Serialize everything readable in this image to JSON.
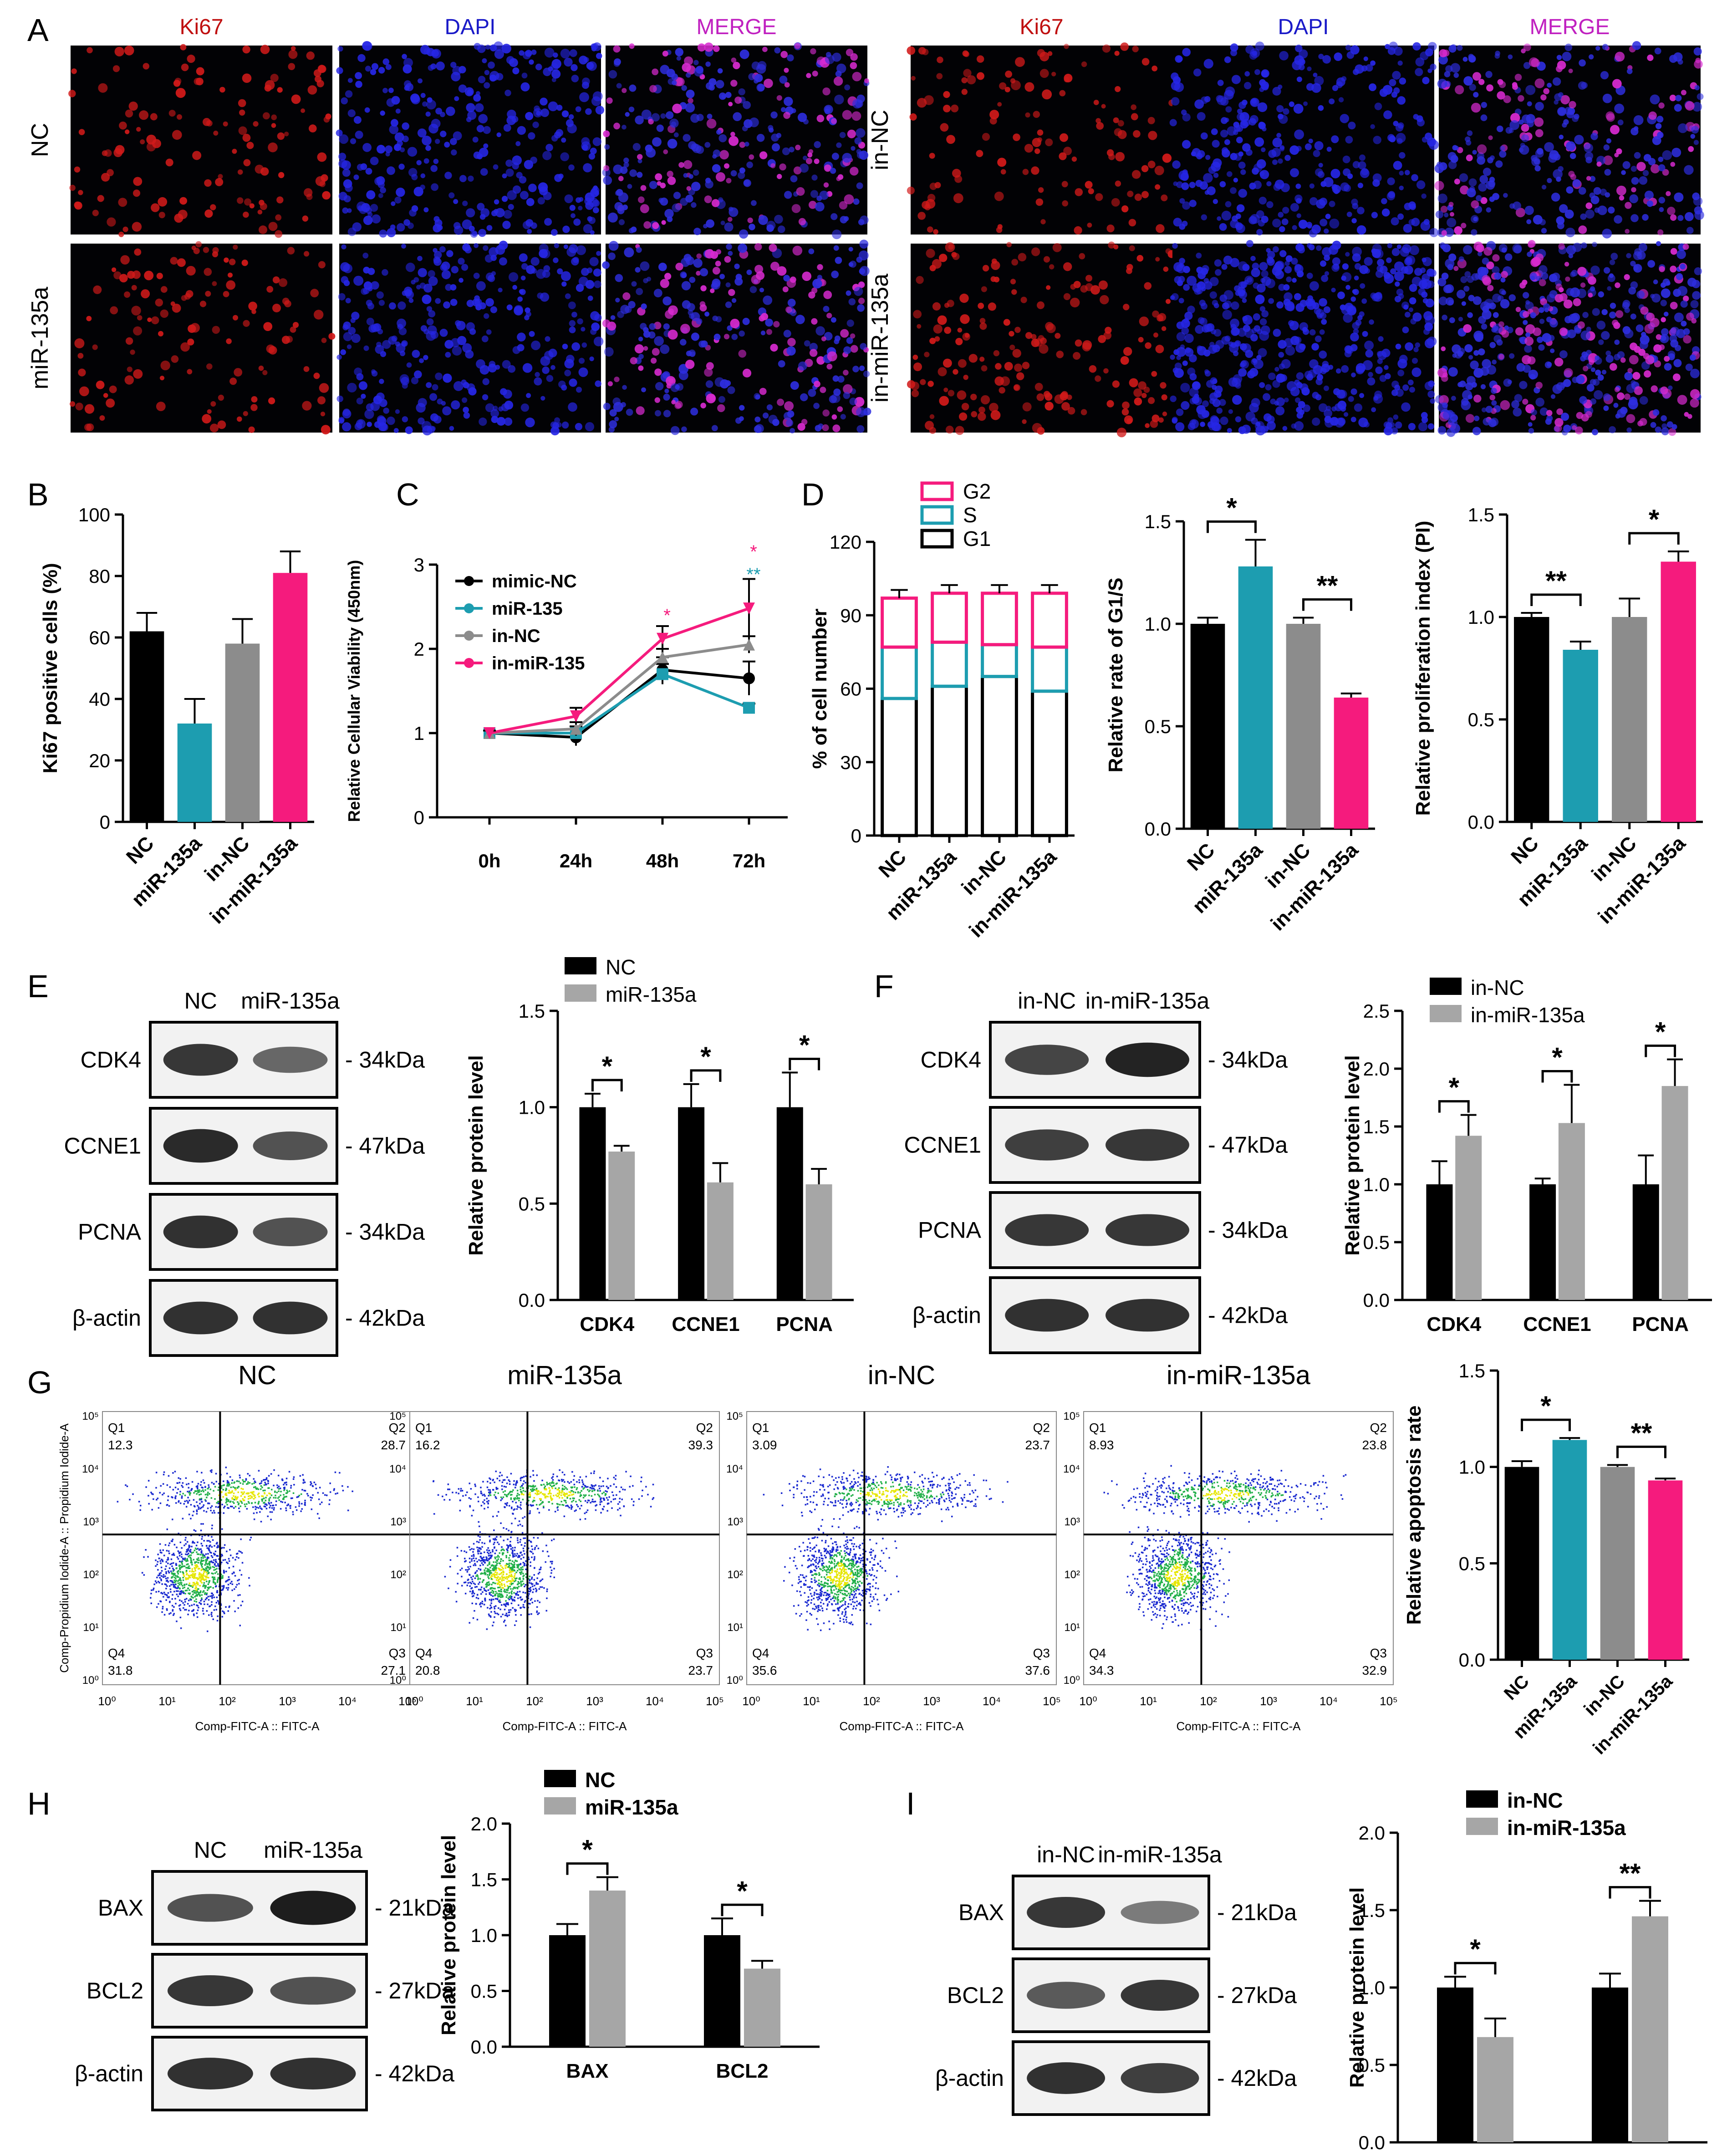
{
  "panel_letters": [
    "A",
    "B",
    "C",
    "D",
    "E",
    "F",
    "G",
    "H",
    "I"
  ],
  "panelA": {
    "channels": [
      "Ki67",
      "DAPI",
      "MERGE"
    ],
    "channel_colors": [
      "#c01010",
      "#1a1ac8",
      "#c020c0"
    ],
    "left_rows": [
      "NC",
      "miR-135a"
    ],
    "right_rows": [
      "in-NC",
      "in-miR-135a"
    ]
  },
  "chart_data": [
    {
      "panel": "B",
      "type": "bar",
      "categories": [
        "NC",
        "miR-135a",
        "in-NC",
        "in-miR-135a"
      ],
      "values": [
        62,
        32,
        58,
        81
      ],
      "errors": [
        6,
        8,
        8,
        7
      ],
      "colors": [
        "#000000",
        "#1d9db0",
        "#8c8c8c",
        "#f51b7d"
      ],
      "ylabel": "Ki67 positive cells (%)",
      "ylim": [
        0,
        100
      ],
      "yticks": [
        "0",
        "20",
        "40",
        "60",
        "80",
        "100"
      ]
    },
    {
      "panel": "C",
      "type": "line",
      "x": [
        "0h",
        "24h",
        "48h",
        "72h"
      ],
      "ylabel": "Relative Cellular Viability (450nm)",
      "ylim": [
        0,
        3
      ],
      "yticks": [
        "0",
        "1",
        "2",
        "3"
      ],
      "series": [
        {
          "name": "mimic-NC",
          "values": [
            1.0,
            0.95,
            1.75,
            1.65
          ],
          "errors": [
            0.03,
            0.1,
            0.15,
            0.2
          ],
          "color": "#000000",
          "marker": "circle"
        },
        {
          "name": "miR-135",
          "values": [
            1.0,
            1.0,
            1.7,
            1.3
          ],
          "errors": [
            0.03,
            0.08,
            0.12,
            0.05
          ],
          "color": "#1d9db0",
          "marker": "square"
        },
        {
          "name": "in-NC",
          "values": [
            1.0,
            1.05,
            1.9,
            2.05
          ],
          "errors": [
            0.03,
            0.08,
            0.1,
            0.1
          ],
          "color": "#8c8c8c",
          "marker": "triangle"
        },
        {
          "name": "in-miR-135",
          "values": [
            1.0,
            1.2,
            2.12,
            2.48
          ],
          "errors": [
            0.03,
            0.1,
            0.15,
            0.35
          ],
          "color": "#f51b7d",
          "marker": "triangle-down"
        }
      ],
      "annotations": [
        {
          "x": "48h",
          "text": "*",
          "color": "#f51b7d"
        },
        {
          "x": "72h",
          "text": "*",
          "color": "#f51b7d"
        },
        {
          "x": "72h",
          "text": "**",
          "color": "#1d9db0"
        }
      ]
    },
    {
      "panel": "D1",
      "type": "bar",
      "stacked": true,
      "categories": [
        "NC",
        "miR-135a",
        "in-NC",
        "in-miR-135a"
      ],
      "ylabel": "% of cell number",
      "ylim": [
        0,
        120
      ],
      "yticks": [
        "0",
        "30",
        "60",
        "90",
        "120"
      ],
      "series": [
        {
          "name": "G1",
          "values": [
            56,
            61,
            65,
            59
          ],
          "color": "#000000"
        },
        {
          "name": "S",
          "values": [
            21,
            18,
            13,
            18
          ],
          "color": "#1d9db0"
        },
        {
          "name": "G2",
          "values": [
            20,
            20,
            21,
            22
          ],
          "color": "#f51b7d"
        }
      ],
      "legend_order": [
        "G2",
        "S",
        "G1"
      ]
    },
    {
      "panel": "D2",
      "type": "bar",
      "categories": [
        "NC",
        "miR-135a",
        "in-NC",
        "in-miR-135a"
      ],
      "values": [
        1.0,
        1.28,
        1.0,
        0.64
      ],
      "errors": [
        0.03,
        0.13,
        0.03,
        0.02
      ],
      "colors": [
        "#000000",
        "#1d9db0",
        "#8c8c8c",
        "#f51b7d"
      ],
      "ylabel": "Relative rate of G1/S",
      "ylim": [
        0,
        1.5
      ],
      "yticks": [
        "0.0",
        "0.5",
        "1.0",
        "1.5"
      ],
      "brackets": [
        {
          "from": 0,
          "to": 1,
          "text": "*"
        },
        {
          "from": 2,
          "to": 3,
          "text": "**"
        }
      ]
    },
    {
      "panel": "D3",
      "type": "bar",
      "categories": [
        "NC",
        "miR-135a",
        "in-NC",
        "in-miR-135a"
      ],
      "values": [
        1.0,
        0.84,
        1.0,
        1.27
      ],
      "errors": [
        0.02,
        0.04,
        0.09,
        0.05
      ],
      "colors": [
        "#000000",
        "#1d9db0",
        "#8c8c8c",
        "#f51b7d"
      ],
      "ylabel": "Relative proliferation index (PI)",
      "ylim": [
        0,
        1.5
      ],
      "yticks": [
        "0.0",
        "0.5",
        "1.0",
        "1.5"
      ],
      "brackets": [
        {
          "from": 0,
          "to": 1,
          "text": "**"
        },
        {
          "from": 2,
          "to": 3,
          "text": "*"
        }
      ]
    },
    {
      "panel": "E",
      "type": "bar",
      "categories": [
        "CDK4",
        "CCNE1",
        "PCNA"
      ],
      "series": [
        {
          "name": "NC",
          "values": [
            1.0,
            1.0,
            1.0
          ],
          "errors": [
            0.07,
            0.12,
            0.18
          ],
          "color": "#000000"
        },
        {
          "name": "miR-135a",
          "values": [
            0.77,
            0.61,
            0.6
          ],
          "errors": [
            0.03,
            0.1,
            0.08
          ],
          "color": "#a6a6a6"
        }
      ],
      "ylabel": "Relative protein level",
      "ylim": [
        0,
        1.5
      ],
      "yticks": [
        "0.0",
        "0.5",
        "1.0",
        "1.5"
      ],
      "brackets": [
        "*",
        "*",
        "*"
      ]
    },
    {
      "panel": "F",
      "type": "bar",
      "categories": [
        "CDK4",
        "CCNE1",
        "PCNA"
      ],
      "series": [
        {
          "name": "in-NC",
          "values": [
            1.0,
            1.0,
            1.0
          ],
          "errors": [
            0.2,
            0.05,
            0.25
          ],
          "color": "#000000"
        },
        {
          "name": "in-miR-135a",
          "values": [
            1.42,
            1.53,
            1.85
          ],
          "errors": [
            0.18,
            0.33,
            0.23
          ],
          "color": "#a6a6a6"
        }
      ],
      "ylabel": "Relative protein level",
      "ylim": [
        0,
        2.5
      ],
      "yticks": [
        "0.0",
        "0.5",
        "1.0",
        "1.5",
        "2.0",
        "2.5"
      ],
      "brackets": [
        "*",
        "*",
        "*"
      ]
    },
    {
      "panel": "G-bar",
      "type": "bar",
      "categories": [
        "NC",
        "miR-135a",
        "in-NC",
        "in-miR-135a"
      ],
      "values": [
        1.0,
        1.14,
        1.0,
        0.93
      ],
      "errors": [
        0.03,
        0.01,
        0.01,
        0.01
      ],
      "colors": [
        "#000000",
        "#1d9db0",
        "#8c8c8c",
        "#f51b7d"
      ],
      "ylabel": "Relative apoptosis rate",
      "ylim": [
        0,
        1.5
      ],
      "yticks": [
        "0.0",
        "0.5",
        "1.0",
        "1.5"
      ],
      "brackets": [
        {
          "from": 0,
          "to": 1,
          "text": "*"
        },
        {
          "from": 2,
          "to": 3,
          "text": "**"
        }
      ]
    },
    {
      "panel": "H",
      "type": "bar",
      "categories": [
        "BAX",
        "BCL2"
      ],
      "series": [
        {
          "name": "NC",
          "values": [
            1.0,
            1.0
          ],
          "errors": [
            0.1,
            0.15
          ],
          "color": "#000000"
        },
        {
          "name": "miR-135a",
          "values": [
            1.4,
            0.7
          ],
          "errors": [
            0.12,
            0.07
          ],
          "color": "#a6a6a6"
        }
      ],
      "ylabel": "Relative protein level",
      "ylim": [
        0,
        2.0
      ],
      "yticks": [
        "0.0",
        "0.5",
        "1.0",
        "1.5",
        "2.0"
      ],
      "brackets": [
        "*",
        "*"
      ]
    },
    {
      "panel": "I",
      "type": "bar",
      "categories": [
        "BAX",
        "BCL2"
      ],
      "series": [
        {
          "name": "in-NC",
          "values": [
            1.0,
            1.0
          ],
          "errors": [
            0.07,
            0.09
          ],
          "color": "#000000"
        },
        {
          "name": "in-miR-135a",
          "values": [
            0.68,
            1.46
          ],
          "errors": [
            0.12,
            0.1
          ],
          "color": "#a6a6a6"
        }
      ],
      "ylabel": "Relative protein level",
      "ylim": [
        0,
        2.0
      ],
      "yticks": [
        "0.0",
        "0.5",
        "1.0",
        "1.5",
        "2.0"
      ],
      "brackets": [
        "*",
        "**"
      ]
    }
  ],
  "westernE": {
    "lanes": [
      "NC",
      "miR-135a"
    ],
    "rows": [
      {
        "protein": "CDK4",
        "size": "- 34kDa"
      },
      {
        "protein": "CCNE1",
        "size": "- 47kDa"
      },
      {
        "protein": "PCNA",
        "size": "- 34kDa"
      },
      {
        "protein": "β-actin",
        "size": "- 42kDa"
      }
    ]
  },
  "westernF": {
    "lanes": [
      "in-NC",
      "in-miR-135a"
    ],
    "rows": [
      {
        "protein": "CDK4",
        "size": "- 34kDa"
      },
      {
        "protein": "CCNE1",
        "size": "- 47kDa"
      },
      {
        "protein": "PCNA",
        "size": "- 34kDa"
      },
      {
        "protein": "β-actin",
        "size": "- 42kDa"
      }
    ]
  },
  "westernH": {
    "lanes": [
      "NC",
      "miR-135a"
    ],
    "rows": [
      {
        "protein": "BAX",
        "size": "- 21kDa"
      },
      {
        "protein": "BCL2",
        "size": "- 27kDa"
      },
      {
        "protein": "β-actin",
        "size": "- 42kDa"
      }
    ]
  },
  "westernI": {
    "lanes": [
      "in-NC",
      "in-miR-135a"
    ],
    "rows": [
      {
        "protein": "BAX",
        "size": "- 21kDa"
      },
      {
        "protein": "BCL2",
        "size": "- 27kDa"
      },
      {
        "protein": "β-actin",
        "size": "- 42kDa"
      }
    ]
  },
  "flow": {
    "ylabel": "Comp-Propidium Iodide-A :: Propidium Iodide-A",
    "xlabel": "Comp-FITC-A :: FITC-A",
    "ticks": [
      "10⁰",
      "10¹",
      "10²",
      "10³",
      "10⁴",
      "10⁵"
    ],
    "plots": [
      {
        "title": "NC",
        "q": {
          "Q1": "12.3",
          "Q2": "28.7",
          "Q3": "27.1",
          "Q4": "31.8"
        }
      },
      {
        "title": "miR-135a",
        "q": {
          "Q1": "16.2",
          "Q2": "39.3",
          "Q3": "23.7",
          "Q4": "20.8"
        }
      },
      {
        "title": "in-NC",
        "q": {
          "Q1": "3.09",
          "Q2": "23.7",
          "Q3": "37.6",
          "Q4": "35.6"
        }
      },
      {
        "title": "in-miR-135a",
        "q": {
          "Q1": "8.93",
          "Q2": "23.8",
          "Q3": "32.9",
          "Q4": "34.3"
        }
      }
    ]
  }
}
